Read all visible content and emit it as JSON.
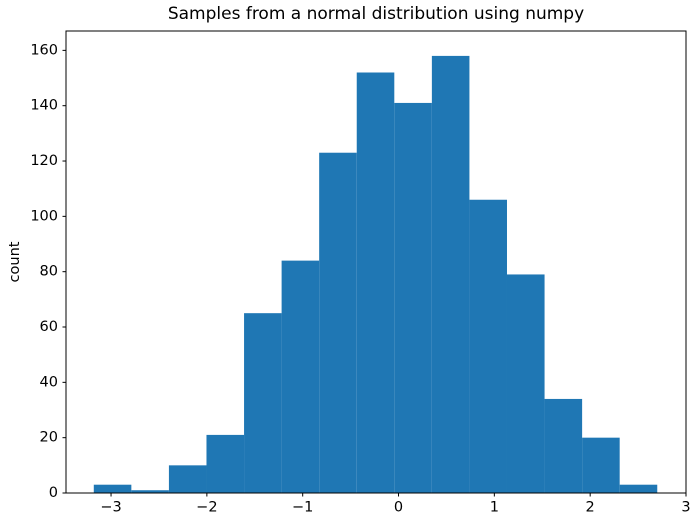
{
  "figure": {
    "title": "Samples from a normal distribution using numpy",
    "ylabel": "count"
  },
  "chart_data": {
    "type": "bar",
    "subtype": "histogram",
    "title": "Samples from a normal distribution using numpy",
    "xlabel": "",
    "ylabel": "count",
    "bar_color": "#1f77b4",
    "axis_color": "#000000",
    "background_color": "#ffffff",
    "bin_edges": [
      -3.18,
      -2.788,
      -2.396,
      -2.004,
      -1.612,
      -1.22,
      -0.828,
      -0.436,
      -0.044,
      0.348,
      0.74,
      1.132,
      1.524,
      1.916,
      2.308,
      2.7
    ],
    "counts": [
      3,
      1,
      10,
      21,
      65,
      84,
      123,
      152,
      141,
      158,
      106,
      79,
      34,
      20,
      3
    ],
    "x_ticks": [
      -3,
      -2,
      -1,
      0,
      1,
      2,
      3
    ],
    "x_tick_labels": [
      "−3",
      "−2",
      "−1",
      "0",
      "1",
      "2",
      "3"
    ],
    "y_ticks": [
      0,
      20,
      40,
      60,
      80,
      100,
      120,
      140,
      160
    ],
    "y_tick_labels": [
      "0",
      "20",
      "40",
      "60",
      "80",
      "100",
      "120",
      "140",
      "160"
    ],
    "xlim": [
      -3.47,
      3.0
    ],
    "ylim": [
      0,
      167
    ],
    "grid": false,
    "legend": null
  }
}
